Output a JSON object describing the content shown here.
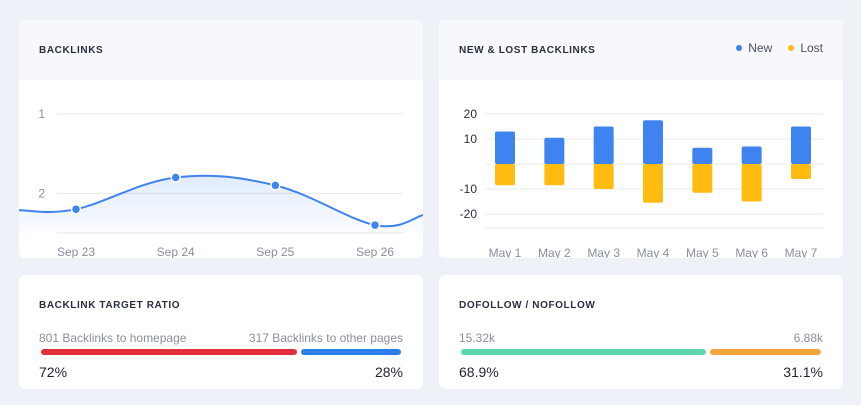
{
  "backlinks": {
    "title": "BACKLINKS",
    "chart_data": {
      "type": "line",
      "categories": [
        "Sep 23",
        "Sep 24",
        "Sep 25",
        "Sep 26"
      ],
      "yticks": [
        "1",
        "2"
      ],
      "series": [
        {
          "values": [
            2.2,
            1.8,
            1.9,
            2.4
          ]
        }
      ],
      "color": "#3f83f0"
    }
  },
  "newlost": {
    "title": "NEW & LOST BACKLINKS",
    "legend": [
      {
        "label": "New",
        "color": "#3f83f0"
      },
      {
        "label": "Lost",
        "color": "#ffbb10"
      }
    ],
    "chart_data": {
      "type": "bar",
      "categories": [
        "May 1",
        "May 2",
        "May 3",
        "May 4",
        "May 5",
        "May 6",
        "May 7"
      ],
      "yticks": [
        20,
        10,
        -10,
        -20
      ],
      "ylim": [
        -20,
        20
      ],
      "series": [
        {
          "name": "New",
          "values": [
            13,
            10.5,
            15,
            17.5,
            6.5,
            7,
            15
          ]
        },
        {
          "name": "Lost",
          "values": [
            -8.5,
            -8.5,
            -10,
            -15.5,
            -11.5,
            -15,
            -6
          ]
        }
      ]
    }
  },
  "ratio": {
    "title": "BACKLINK TARGET RATIO",
    "left_label": "801 Backlinks to homepage",
    "right_label": "317 Backlinks to other pages",
    "left_pct": "72%",
    "right_pct": "28%",
    "left_fraction": 0.72,
    "left_color": "#e0303c",
    "right_color": "#2a7fe8"
  },
  "dofollow": {
    "title": "DOFOLLOW / NOFOLLOW",
    "left_label": "15.32k",
    "right_label": "6.88k",
    "left_pct": "68.9%",
    "right_pct": "31.1%",
    "left_fraction": 0.689,
    "left_color": "#5dd6ae",
    "right_color": "#f9a43a"
  }
}
